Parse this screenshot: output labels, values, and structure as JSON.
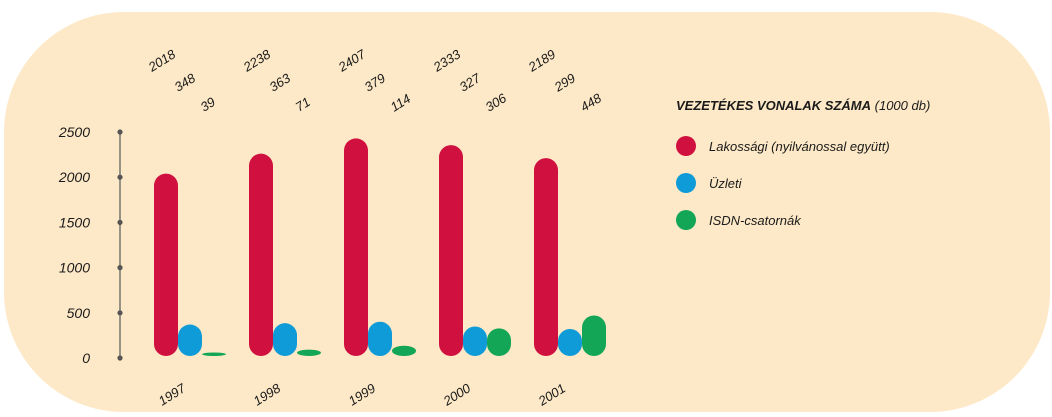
{
  "chart_data": {
    "type": "bar",
    "title_bold": "VEZETÉKES VONALAK SZÁMA",
    "title_unit": "(1000 db)",
    "categories": [
      "1997",
      "1998",
      "1999",
      "2000",
      "2001"
    ],
    "yticks": [
      "0",
      "500",
      "1000",
      "1500",
      "2000",
      "2500"
    ],
    "ylim": [
      0,
      2500
    ],
    "series": [
      {
        "name": "Lakossági (nyilvánossal együtt)",
        "color": "#d0103e",
        "values": [
          2018,
          2238,
          2407,
          2333,
          2189
        ]
      },
      {
        "name": "Üzleti",
        "color": "#0e9bd8",
        "values": [
          348,
          363,
          379,
          327,
          299
        ]
      },
      {
        "name": "ISDN-csatornák",
        "color": "#12a656",
        "values": [
          39,
          71,
          114,
          306,
          448
        ]
      }
    ],
    "grid": false,
    "legend": "right"
  }
}
